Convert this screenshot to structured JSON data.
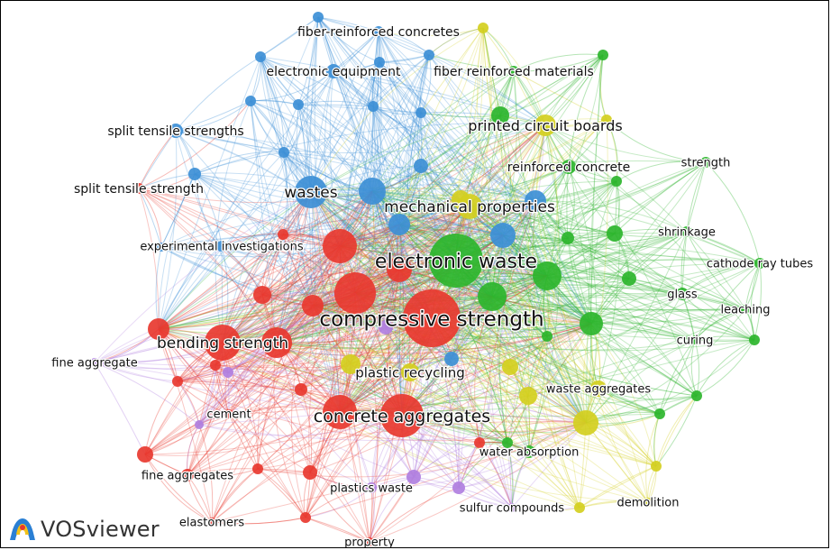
{
  "app": {
    "brand_name": "VOSviewer",
    "brand_icon": "vosviewer-logo-icon"
  },
  "clusters": {
    "red": "#e8382f",
    "green": "#2db52d",
    "blue": "#3d8fd6",
    "yellow": "#d4cf1f",
    "purple": "#b07fe0"
  },
  "nodes": [
    {
      "id": "electronic-waste",
      "label": "electronic waste",
      "cluster": "green",
      "weight": 10
    },
    {
      "id": "compressive-strength",
      "label": "compressive strength",
      "cluster": "red",
      "weight": 10
    },
    {
      "id": "concrete-aggregates",
      "label": "concrete aggregates",
      "cluster": "red",
      "weight": 8
    },
    {
      "id": "mechanical-properties",
      "label": "mechanical properties",
      "cluster": "yellow",
      "weight": 6
    },
    {
      "id": "wastes",
      "label": "wastes",
      "cluster": "blue",
      "weight": 7
    },
    {
      "id": "bending-strength",
      "label": "bending strength",
      "cluster": "red",
      "weight": 6
    },
    {
      "id": "plastic-recycling",
      "label": "plastic recycling",
      "cluster": "yellow",
      "weight": 5
    },
    {
      "id": "printed-circuit-boards",
      "label": "printed circuit boards",
      "cluster": "yellow",
      "weight": 5
    },
    {
      "id": "reinforced-concrete",
      "label": "reinforced concrete",
      "cluster": "green",
      "weight": 4
    },
    {
      "id": "fiber-reinforced-concretes",
      "label": "fiber-reinforced concretes",
      "cluster": "blue",
      "weight": 4
    },
    {
      "id": "electronic-equipment",
      "label": "electronic equipment",
      "cluster": "blue",
      "weight": 4
    },
    {
      "id": "fiber-reinforced-materials",
      "label": "fiber reinforced materials",
      "cluster": "green",
      "weight": 4
    },
    {
      "id": "split-tensile-strengths",
      "label": "split tensile strengths",
      "cluster": "blue",
      "weight": 4
    },
    {
      "id": "split-tensile-strength",
      "label": "split tensile strength",
      "cluster": "red",
      "weight": 4
    },
    {
      "id": "experimental-investigations",
      "label": "experimental investigations",
      "cluster": "blue",
      "weight": 4
    },
    {
      "id": "strength",
      "label": "strength",
      "cluster": "green",
      "weight": 3
    },
    {
      "id": "shrinkage",
      "label": "shrinkage",
      "cluster": "green",
      "weight": 3
    },
    {
      "id": "cathode-ray-tubes",
      "label": "cathode ray tubes",
      "cluster": "green",
      "weight": 3
    },
    {
      "id": "glass",
      "label": "glass",
      "cluster": "green",
      "weight": 4
    },
    {
      "id": "leaching",
      "label": "leaching",
      "cluster": "green",
      "weight": 3
    },
    {
      "id": "curing",
      "label": "curing",
      "cluster": "green",
      "weight": 3
    },
    {
      "id": "waste-aggregates",
      "label": "waste aggregates",
      "cluster": "yellow",
      "weight": 4
    },
    {
      "id": "water-absorption",
      "label": "water absorption",
      "cluster": "green",
      "weight": 4
    },
    {
      "id": "demolition",
      "label": "demolition",
      "cluster": "yellow",
      "weight": 3
    },
    {
      "id": "sulfur-compounds",
      "label": "sulfur compounds",
      "cluster": "purple",
      "weight": 3
    },
    {
      "id": "plastics-waste",
      "label": "plastics waste",
      "cluster": "purple",
      "weight": 3
    },
    {
      "id": "property",
      "label": "property",
      "cluster": "red",
      "weight": 3
    },
    {
      "id": "elastomers",
      "label": "elastomers",
      "cluster": "red",
      "weight": 3
    },
    {
      "id": "fine-aggregates",
      "label": "fine aggregates",
      "cluster": "red",
      "weight": 3
    },
    {
      "id": "cement",
      "label": "cement",
      "cluster": "red",
      "weight": 3
    },
    {
      "id": "fine-aggregate",
      "label": "fine aggregate",
      "cluster": "purple",
      "weight": 3
    }
  ]
}
